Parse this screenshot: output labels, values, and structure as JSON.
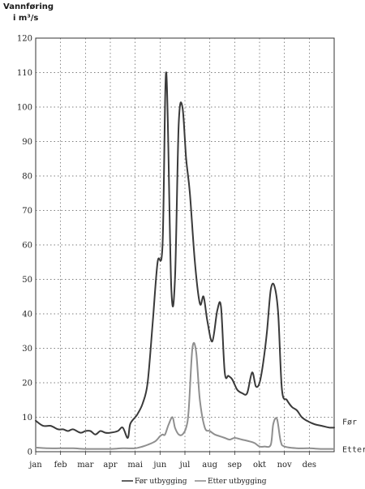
{
  "chart_data": {
    "type": "line",
    "ylabel_line1": "Vannføring",
    "ylabel_line2": "i m³/s",
    "ylim": [
      0,
      120
    ],
    "yticks": [
      0,
      10,
      20,
      30,
      40,
      50,
      60,
      70,
      80,
      90,
      100,
      110,
      120
    ],
    "xlim": [
      0,
      12
    ],
    "categories": [
      "jan",
      "feb",
      "mar",
      "apr",
      "mai",
      "jun",
      "jul",
      "aug",
      "sep",
      "okt",
      "nov",
      "des"
    ],
    "grid": true,
    "legend_position": "bottom",
    "series": [
      {
        "name": "Før utbygging",
        "end_label": "Før",
        "color": "#3a3a3a",
        "width": 2.0,
        "x": [
          0.0,
          0.3,
          0.6,
          0.9,
          1.1,
          1.3,
          1.5,
          1.8,
          2.0,
          2.2,
          2.4,
          2.6,
          2.8,
          3.0,
          3.3,
          3.5,
          3.7,
          3.8,
          4.0,
          4.1,
          4.3,
          4.5,
          4.7,
          4.9,
          5.1,
          5.25,
          5.45,
          5.6,
          5.75,
          5.9,
          6.05,
          6.2,
          6.4,
          6.6,
          6.75,
          6.9,
          7.1,
          7.3,
          7.45,
          7.6,
          7.75,
          7.9,
          8.1,
          8.3,
          8.5,
          8.7,
          8.85,
          9.0,
          9.15,
          9.3,
          9.45,
          9.6,
          9.75,
          9.9,
          10.1,
          10.3,
          10.5,
          10.7,
          10.9,
          11.2,
          11.5,
          11.8,
          12.0
        ],
        "y": [
          9,
          7.5,
          7.5,
          6.5,
          6.5,
          6,
          6.5,
          5.5,
          6,
          6,
          5,
          6,
          5.5,
          5.5,
          6,
          7,
          4,
          8,
          10,
          11,
          14,
          20,
          37,
          55,
          60,
          110,
          48,
          50,
          95,
          100,
          85,
          75,
          55,
          43,
          45,
          38,
          32,
          41,
          42,
          23,
          22,
          21,
          18,
          17,
          17,
          23,
          19,
          20,
          26,
          35,
          47,
          48,
          40,
          18,
          15,
          13,
          12,
          10,
          9,
          8,
          7.5,
          7,
          7
        ]
      },
      {
        "name": "Etter utbygging",
        "end_label": "Etter",
        "color": "#8f8f8f",
        "width": 2.0,
        "x": [
          0.0,
          0.5,
          1.0,
          1.5,
          2.0,
          2.5,
          3.0,
          3.5,
          4.0,
          4.3,
          4.5,
          4.8,
          5.0,
          5.1,
          5.2,
          5.35,
          5.5,
          5.6,
          5.75,
          5.9,
          6.05,
          6.15,
          6.3,
          6.45,
          6.6,
          6.8,
          7.0,
          7.2,
          7.4,
          7.6,
          7.8,
          8.0,
          8.3,
          8.6,
          8.8,
          9.0,
          9.2,
          9.45,
          9.55,
          9.7,
          9.85,
          10.0,
          10.5,
          11.0,
          11.5,
          12.0
        ],
        "y": [
          1.2,
          1,
          1,
          1,
          0.8,
          0.8,
          0.8,
          1,
          1,
          1.5,
          2,
          3,
          4.5,
          5,
          5,
          8,
          10,
          7,
          5,
          5,
          7,
          12,
          30,
          29,
          15,
          7,
          6,
          5,
          4.5,
          4,
          3.5,
          4,
          3.5,
          3,
          2.5,
          1.5,
          1.5,
          2,
          8,
          9.5,
          3,
          1.5,
          1,
          1,
          0.8,
          0.8
        ]
      }
    ]
  }
}
